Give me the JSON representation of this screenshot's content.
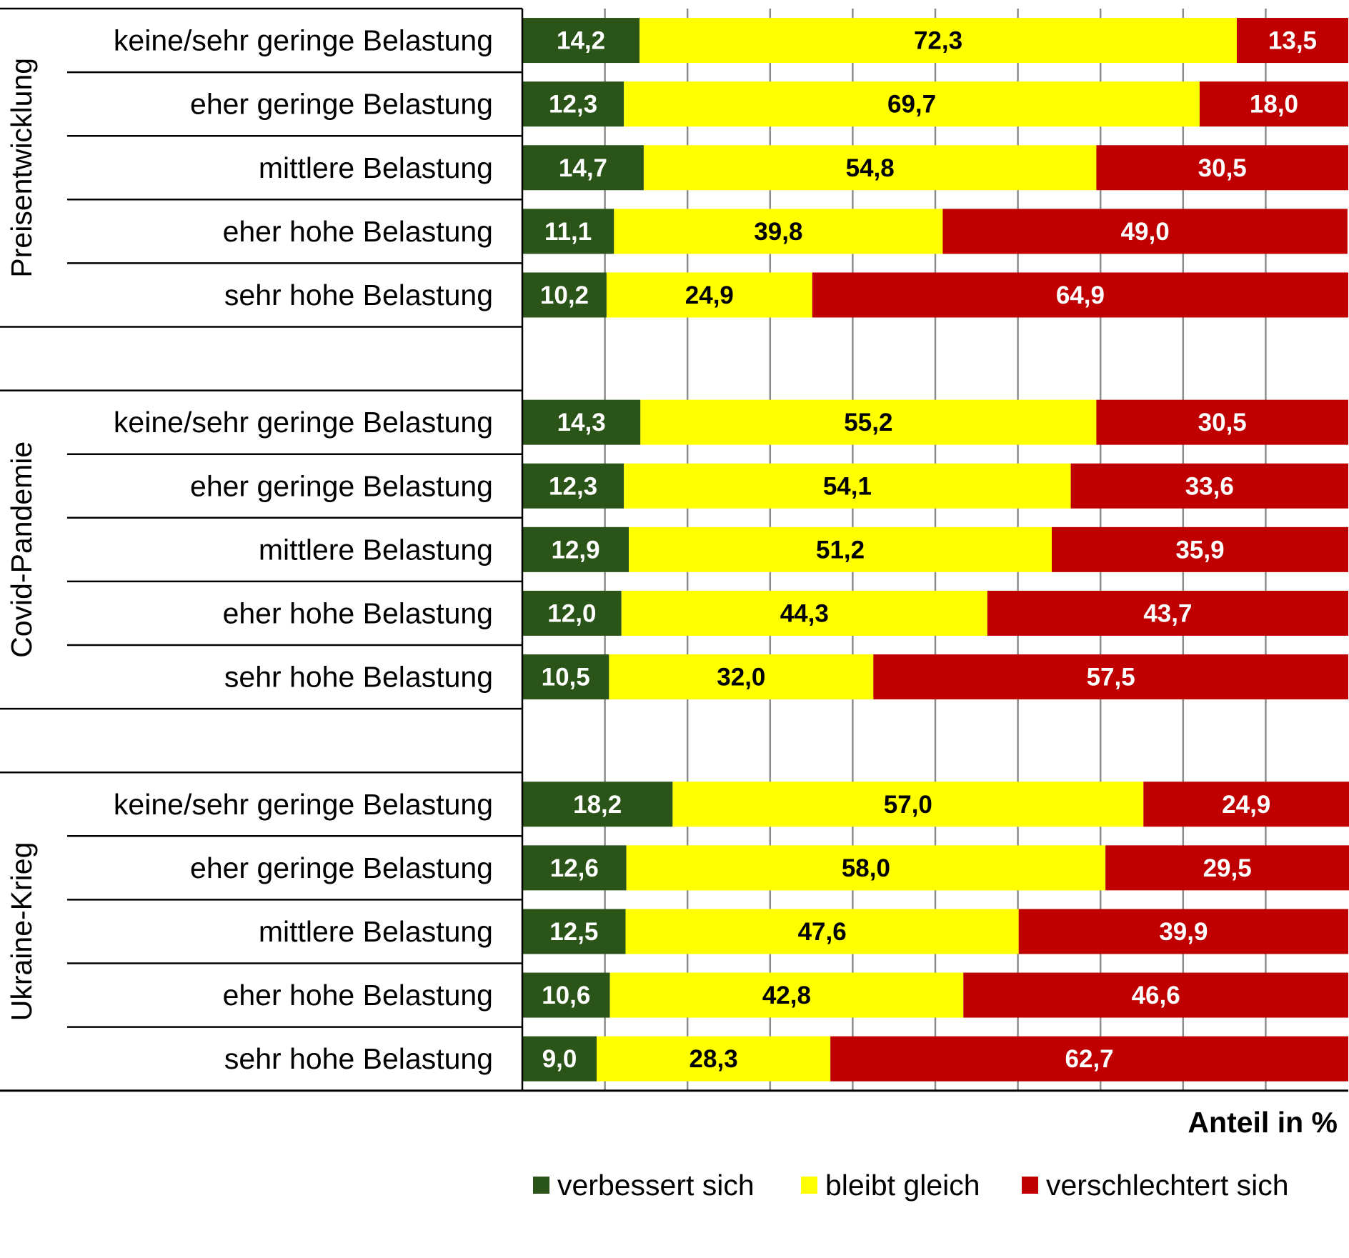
{
  "chart_data": {
    "type": "bar",
    "orientation": "horizontal",
    "stacked": true,
    "xlabel": "Anteil in %",
    "xlim": [
      0,
      100
    ],
    "grid": true,
    "legend_position": "bottom",
    "groups": [
      {
        "name": "Preisentwicklung",
        "categories": [
          "keine/sehr geringe Belastung",
          "eher geringe Belastung",
          "mittlere Belastung",
          "eher hohe Belastung",
          "sehr hohe Belastung"
        ],
        "values": [
          [
            14.2,
            72.3,
            13.5
          ],
          [
            12.3,
            69.7,
            18.0
          ],
          [
            14.7,
            54.8,
            30.5
          ],
          [
            11.1,
            39.8,
            49.0
          ],
          [
            10.2,
            24.9,
            64.9
          ]
        ]
      },
      {
        "name": "Covid-Pandemie",
        "categories": [
          "keine/sehr geringe Belastung",
          "eher geringe Belastung",
          "mittlere Belastung",
          "eher hohe Belastung",
          "sehr hohe Belastung"
        ],
        "values": [
          [
            14.3,
            55.2,
            30.5
          ],
          [
            12.3,
            54.1,
            33.6
          ],
          [
            12.9,
            51.2,
            35.9
          ],
          [
            12.0,
            44.3,
            43.7
          ],
          [
            10.5,
            32.0,
            57.5
          ]
        ]
      },
      {
        "name": "Ukraine-Krieg",
        "categories": [
          "keine/sehr geringe Belastung",
          "eher geringe Belastung",
          "mittlere Belastung",
          "eher hohe Belastung",
          "sehr hohe Belastung"
        ],
        "values": [
          [
            18.2,
            57.0,
            24.9
          ],
          [
            12.6,
            58.0,
            29.5
          ],
          [
            12.5,
            47.6,
            39.9
          ],
          [
            10.6,
            42.8,
            46.6
          ],
          [
            9.0,
            28.3,
            62.7
          ]
        ]
      }
    ],
    "series": [
      {
        "name": "verbessert sich",
        "color": "#2a5418",
        "label_color": "#ffffff"
      },
      {
        "name": "bleibt gleich",
        "color": "#ffff00",
        "label_color": "#000000"
      },
      {
        "name": "verschlechtert sich",
        "color": "#c00000",
        "label_color": "#ffffff"
      }
    ]
  }
}
